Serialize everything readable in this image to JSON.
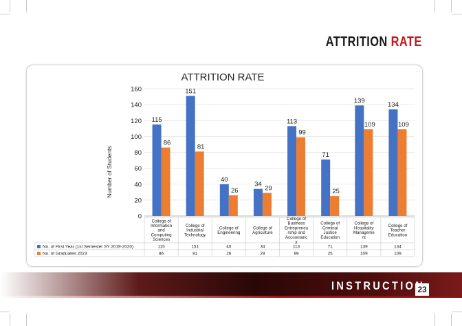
{
  "header": {
    "title_word1": "ATTRITION",
    "title_word2": "RATE"
  },
  "footer": {
    "section_label": "INSTRUCTION",
    "page_number": "23"
  },
  "colors": {
    "first_year": "#4472c4",
    "graduates": "#ed7d31",
    "brand_red": "#c0181c"
  },
  "chart_data": {
    "type": "bar",
    "title": "ATTRITION RATE",
    "ylabel": "Number of Students",
    "xlabel": "",
    "ylim": [
      0,
      160
    ],
    "yticks": [
      0,
      20,
      40,
      60,
      80,
      100,
      120,
      140,
      160
    ],
    "categories": [
      "College of Information and Computing Sciences",
      "College of Industrial Technology",
      "College of Engineering",
      "College of Agriculture",
      "College of Business Entrepreneurship and Accountancy",
      "College of Criminal Justice Education",
      "College of Hospitality Management",
      "College of Teacher Education"
    ],
    "category_lines": [
      [
        "College of",
        "Information",
        "and",
        "Computing",
        "Sciences"
      ],
      [
        "College of",
        "Industrial",
        "Technology"
      ],
      [
        "College of",
        "Engineering"
      ],
      [
        "College of",
        "Agriculture"
      ],
      [
        "College of",
        "Business",
        "Entrepreneu",
        "rship and",
        "Accountanc",
        "y"
      ],
      [
        "College of",
        "Criminal",
        "Justice",
        "Education"
      ],
      [
        "College of",
        "Hospitality",
        "Manageme",
        "nt"
      ],
      [
        "College of",
        "Teacher",
        "Education"
      ]
    ],
    "series": [
      {
        "name": "No. of First Year (1st Semester SY 2019-2020)",
        "values": [
          115,
          151,
          40,
          34,
          113,
          71,
          139,
          134
        ]
      },
      {
        "name": "No. of Graduates 2023",
        "values": [
          86,
          81,
          26,
          29,
          99,
          25,
          109,
          109
        ]
      }
    ],
    "legend": "data-table-below"
  }
}
